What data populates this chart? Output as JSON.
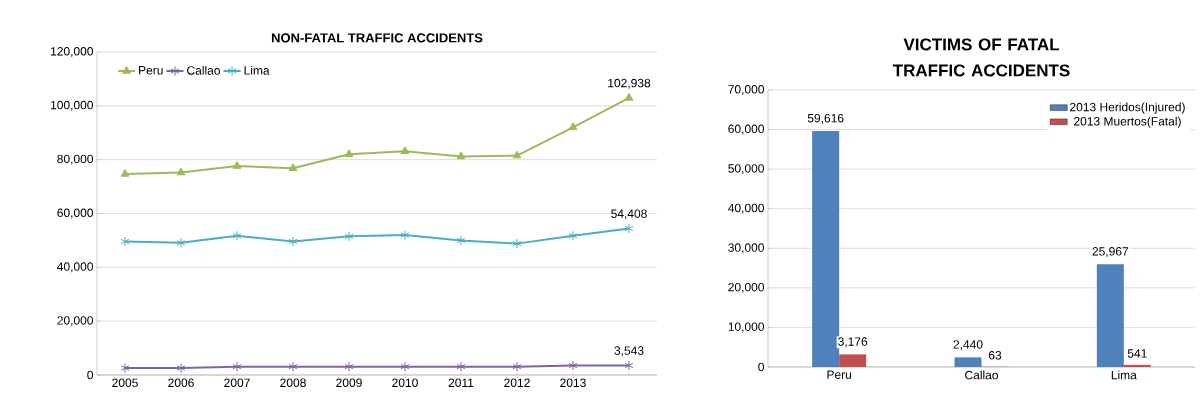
{
  "chart_data": [
    {
      "type": "line",
      "title": "NON-FATAL TRAFFIC ACCIDENTS",
      "categories": [
        "2005",
        "2006",
        "2007",
        "2008",
        "2009",
        "2010",
        "2011",
        "2012",
        "2013",
        null
      ],
      "series": [
        {
          "name": "Peru",
          "color": "#9bbb59",
          "marker": "triangle",
          "values": [
            74700,
            75200,
            77600,
            76800,
            82000,
            83100,
            81200,
            81500,
            92000,
            102938
          ],
          "value_labels": [
            null,
            null,
            null,
            null,
            null,
            null,
            null,
            null,
            null,
            "102,938"
          ]
        },
        {
          "name": "Callao",
          "color": "#8064a2",
          "marker": "cross",
          "values": [
            2600,
            2600,
            3100,
            3100,
            3100,
            3100,
            3100,
            3100,
            3500,
            3543
          ],
          "value_labels": [
            null,
            null,
            null,
            null,
            null,
            null,
            null,
            null,
            null,
            "3,543"
          ]
        },
        {
          "name": "Lima",
          "color": "#4bacc6",
          "marker": "cross",
          "values": [
            49600,
            49100,
            51700,
            49600,
            51500,
            52000,
            50000,
            48800,
            51700,
            54408
          ],
          "value_labels": [
            null,
            null,
            null,
            null,
            null,
            null,
            null,
            null,
            null,
            "54,408"
          ]
        }
      ],
      "ylim": [
        0,
        120000
      ],
      "yticks": [
        {
          "value": 0,
          "label": "0"
        },
        {
          "value": 20000,
          "label": "20,000"
        },
        {
          "value": 40000,
          "label": "40,000"
        },
        {
          "value": 60000,
          "label": "60,000"
        },
        {
          "value": 80000,
          "label": "80,000"
        },
        {
          "value": 100000,
          "label": "100,000"
        },
        {
          "value": 120000,
          "label": "120,000"
        }
      ],
      "grid": "y",
      "legend": "top left"
    },
    {
      "type": "bar",
      "title": "VICTIMS OF FATAL TRAFFIC ACCIDENTS",
      "categories": [
        "Peru",
        "Callao",
        "Lima"
      ],
      "series": [
        {
          "name": "2013 Heridos(Injured)",
          "color": "#4f81bd",
          "values": [
            59616,
            2440,
            25967
          ],
          "value_labels": [
            "59,616",
            "2,440",
            "25,967"
          ]
        },
        {
          "name": "2013 Muertos(Fatal)",
          "color": "#c0504d",
          "values": [
            3176,
            63,
            541
          ],
          "value_labels": [
            "3,176",
            "63",
            "541"
          ]
        }
      ],
      "ylim": [
        0,
        70000
      ],
      "yticks": [
        {
          "value": 0,
          "label": "0"
        },
        {
          "value": 10000,
          "label": "10,000"
        },
        {
          "value": 20000,
          "label": "20,000"
        },
        {
          "value": 30000,
          "label": "30,000"
        },
        {
          "value": 40000,
          "label": "40,000"
        },
        {
          "value": 50000,
          "label": "50,000"
        },
        {
          "value": 60000,
          "label": "60,000"
        },
        {
          "value": 70000,
          "label": "70,000"
        }
      ],
      "grid": "y",
      "legend": "top right"
    }
  ]
}
